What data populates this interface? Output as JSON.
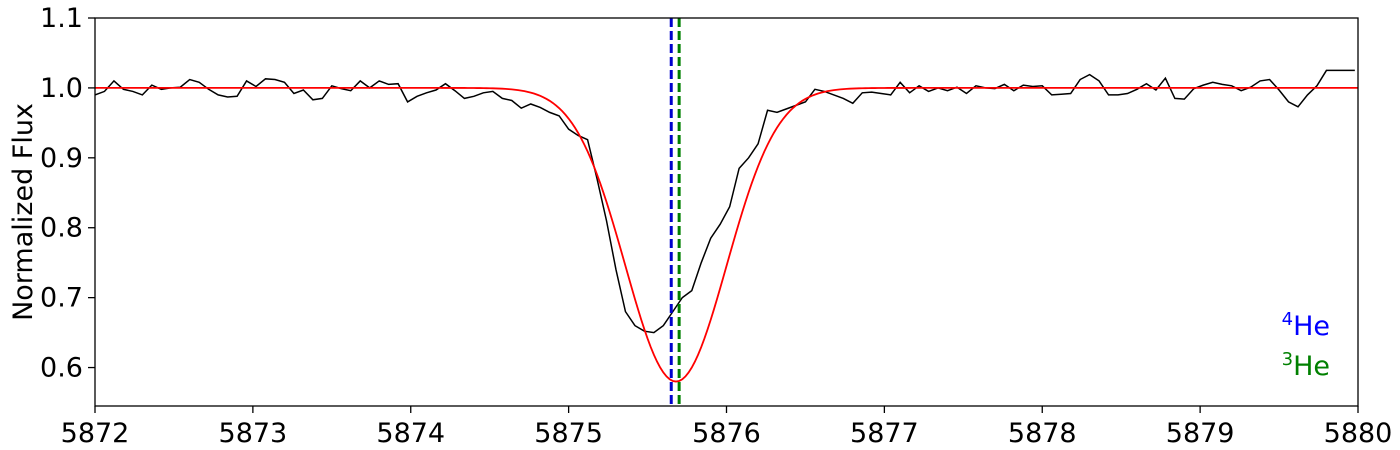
{
  "chart_data": {
    "type": "line",
    "title": "",
    "xlabel": "",
    "ylabel": "Normalized Flux",
    "xlim": [
      5872,
      5880
    ],
    "ylim": [
      0.545,
      1.1
    ],
    "x_ticks": [
      5872,
      5873,
      5874,
      5875,
      5876,
      5877,
      5878,
      5879,
      5880
    ],
    "x_tick_labels": [
      "5872",
      "5873",
      "5874",
      "5875",
      "5876",
      "5877",
      "5878",
      "5879",
      "5880"
    ],
    "y_ticks": [
      0.6,
      0.7,
      0.8,
      0.9,
      1.0,
      1.1
    ],
    "y_tick_labels": [
      "0.6",
      "0.7",
      "0.8",
      "0.9",
      "1.0",
      "1.1"
    ],
    "grid": false,
    "series": [
      {
        "color": "#000000",
        "x": [
          5872.0,
          5872.06,
          5872.12,
          5872.18,
          5872.24,
          5872.3,
          5872.36,
          5872.42,
          5872.48,
          5872.54,
          5872.6,
          5872.66,
          5872.72,
          5872.78,
          5872.84,
          5872.9,
          5872.96,
          5873.02,
          5873.08,
          5873.14,
          5873.2,
          5873.26,
          5873.32,
          5873.38,
          5873.44,
          5873.5,
          5873.56,
          5873.62,
          5873.68,
          5873.74,
          5873.8,
          5873.86,
          5873.92,
          5873.98,
          5874.04,
          5874.1,
          5874.16,
          5874.22,
          5874.28,
          5874.34,
          5874.4,
          5874.46,
          5874.52,
          5874.58,
          5874.64,
          5874.7,
          5874.76,
          5874.82,
          5874.88,
          5874.94,
          5875.0,
          5875.06,
          5875.12,
          5875.18,
          5875.24,
          5875.3,
          5875.36,
          5875.42,
          5875.48,
          5875.54,
          5875.6,
          5875.66,
          5875.72,
          5875.78,
          5875.84,
          5875.9,
          5875.96,
          5876.02,
          5876.08,
          5876.14,
          5876.2,
          5876.26,
          5876.32,
          5876.38,
          5876.44,
          5876.5,
          5876.56,
          5876.62,
          5876.68,
          5876.74,
          5876.8,
          5876.86,
          5876.92,
          5876.98,
          5877.04,
          5877.1,
          5877.16,
          5877.22,
          5877.28,
          5877.34,
          5877.4,
          5877.46,
          5877.52,
          5877.58,
          5877.64,
          5877.7,
          5877.76,
          5877.82,
          5877.88,
          5877.94,
          5878.0,
          5878.06,
          5878.12,
          5878.18,
          5878.24,
          5878.3,
          5878.36,
          5878.42,
          5878.48,
          5878.54,
          5878.6,
          5878.66,
          5878.72,
          5878.78,
          5878.84,
          5878.9,
          5878.96,
          5879.02,
          5879.08,
          5879.14,
          5879.2,
          5879.26,
          5879.32,
          5879.38,
          5879.44,
          5879.5,
          5879.56,
          5879.62,
          5879.68,
          5879.74,
          5879.8,
          5879.86,
          5879.92,
          5879.98
        ],
        "y": [
          0.99,
          0.995,
          1.01,
          0.998,
          0.995,
          0.99,
          1.004,
          0.998,
          1.0,
          1.001,
          1.012,
          1.008,
          0.998,
          0.99,
          0.987,
          0.988,
          1.01,
          1.002,
          1.013,
          1.012,
          1.008,
          0.992,
          0.997,
          0.983,
          0.985,
          1.003,
          0.999,
          0.996,
          1.01,
          1.0,
          1.01,
          1.005,
          1.006,
          0.98,
          0.988,
          0.993,
          0.997,
          1.006,
          0.996,
          0.985,
          0.988,
          0.993,
          0.995,
          0.985,
          0.982,
          0.971,
          0.977,
          0.972,
          0.965,
          0.96,
          0.941,
          0.932,
          0.926,
          0.87,
          0.81,
          0.74,
          0.68,
          0.66,
          0.652,
          0.65,
          0.66,
          0.68,
          0.7,
          0.71,
          0.75,
          0.785,
          0.805,
          0.83,
          0.885,
          0.9,
          0.92,
          0.968,
          0.965,
          0.97,
          0.975,
          0.98,
          0.998,
          0.995,
          0.99,
          0.985,
          0.978,
          0.993,
          0.994,
          0.992,
          0.99,
          1.008,
          0.993,
          1.003,
          0.995,
          1.0,
          0.996,
          1.001,
          0.992,
          1.003,
          1.0,
          0.999,
          1.005,
          0.996,
          1.004,
          1.002,
          1.003,
          0.99,
          0.991,
          0.992,
          1.012,
          1.019,
          1.01,
          0.99,
          0.99,
          0.992,
          0.998,
          1.006,
          0.997,
          1.014,
          0.985,
          0.984,
          0.999,
          1.004,
          1.008,
          1.005,
          1.003,
          0.996,
          1.001,
          1.01,
          1.012,
          0.997,
          0.98,
          0.973,
          0.99,
          1.003,
          1.025,
          1.025,
          1.025,
          1.025
        ],
        "y_note": ""
      },
      {
        "color": "#ff0000",
        "model": "gaussian",
        "continuum": 1.0,
        "depth": 0.42,
        "center": 5875.68,
        "sigma": 0.32
      }
    ],
    "vlines": [
      {
        "x": 5875.65,
        "color": "#0000cc",
        "style": "dashed"
      },
      {
        "x": 5875.7,
        "color": "#008000",
        "style": "dashed"
      }
    ],
    "legend": {
      "placement": "bottom-right",
      "entries": [
        {
          "sup": "4",
          "text": "He",
          "color": "#0000ff"
        },
        {
          "sup": "3",
          "text": "He",
          "color": "#008000"
        }
      ]
    }
  }
}
